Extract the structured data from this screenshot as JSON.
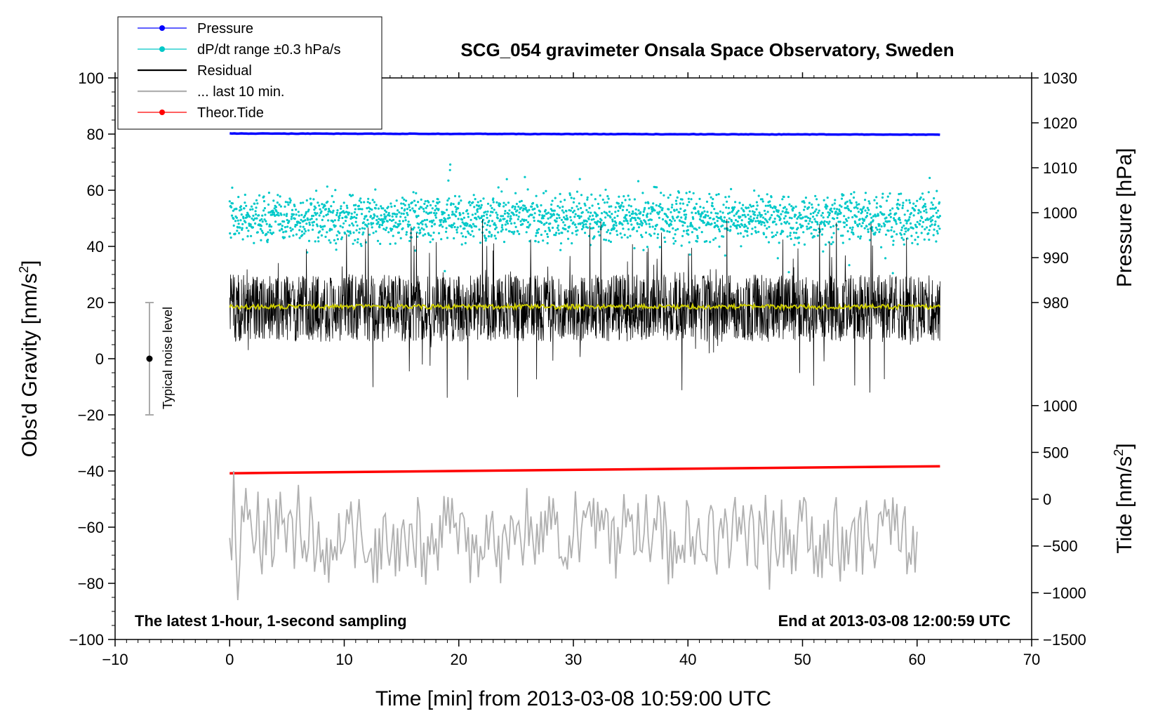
{
  "chart_data": {
    "type": "line",
    "title": "SCG_054 gravimeter Onsala Space Observatory, Sweden",
    "xlabel": "Time [min] from 2013-03-08 10:59:00 UTC",
    "ylabel_left": "Obs'd Gravity [nm/s",
    "ylabel_left_sup": "2",
    "ylabel_left_end": "]",
    "ylabel_right_top": "Pressure [hPa]",
    "ylabel_right_bottom": "Tide [nm/s",
    "ylabel_right_bottom_sup": "2",
    "ylabel_right_bottom_end": "]",
    "xlim": [
      -10,
      70
    ],
    "ylim": [
      -100,
      100
    ],
    "pressure_axis_range": [
      980,
      1030
    ],
    "tide_axis_range": [
      -1500,
      1000
    ],
    "x_ticks": [
      "−10",
      "0",
      "10",
      "20",
      "30",
      "40",
      "50",
      "60",
      "70"
    ],
    "y_ticks": [
      "100",
      "80",
      "60",
      "40",
      "20",
      "0",
      "−20",
      "−40",
      "−60",
      "−80",
      "−100"
    ],
    "pressure_ticks": [
      "1030",
      "1020",
      "1010",
      "1000",
      "990",
      "980"
    ],
    "tide_ticks": [
      "1000",
      "500",
      "0",
      "−500",
      "−1000",
      "−1500"
    ],
    "note_left": "The latest 1-hour, 1-second sampling",
    "note_right": "End at 2013-03-08 12:00:59 UTC",
    "noise_label": "Typical noise level",
    "noise_bar": {
      "x": -7,
      "center": 0,
      "low": -20,
      "high": 20
    },
    "legend": [
      {
        "label": "Pressure",
        "color": "#0000ff",
        "marker": true
      },
      {
        "label": "dP/dt range ±0.3 hPa/s",
        "color": "#00c8c8",
        "marker": true
      },
      {
        "label": "Residual",
        "color": "#000000",
        "marker": false
      },
      {
        "label": "... last 10 min.",
        "color": "#b0b0b0",
        "marker": false
      },
      {
        "label": "Theor.Tide",
        "color": "#ff0000",
        "marker": true
      }
    ],
    "series": [
      {
        "name": "Pressure",
        "color": "#0000ff",
        "x_range": [
          0,
          62
        ],
        "values_start": 80.2,
        "values_end": 79.8
      },
      {
        "name": "dP/dt range ±0.3 hPa/s",
        "color": "#00c8c8",
        "x_range": [
          0,
          62
        ],
        "center": 50,
        "spread": 8
      },
      {
        "name": "Residual",
        "color": "#000000",
        "x_range": [
          0,
          62
        ],
        "center": 18,
        "spread": 12
      },
      {
        "name": "Residual smoothed",
        "color": "#cccc00",
        "x_range": [
          0,
          62
        ],
        "center": 18.5
      },
      {
        "name": "Theor.Tide",
        "color": "#ff0000",
        "x_range": [
          0,
          62
        ],
        "values_start": -40.8,
        "values_end": -38.3
      },
      {
        "name": "... last 10 min.",
        "color": "#b0b0b0",
        "x_range": [
          0,
          60
        ],
        "center": -63,
        "spread": 9
      }
    ]
  }
}
